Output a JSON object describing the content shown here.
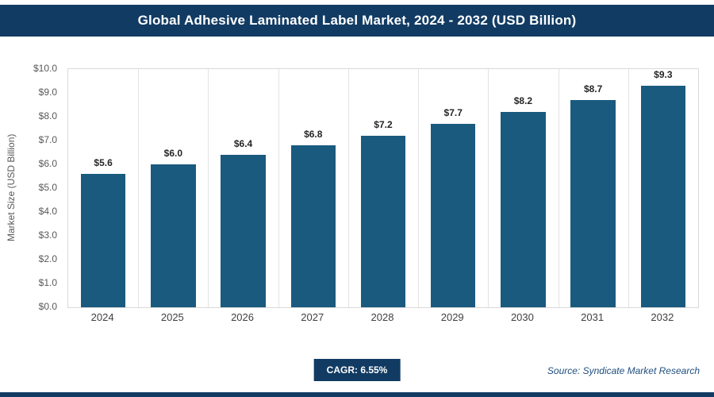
{
  "header": {
    "title": "Global Adhesive Laminated Label Market, 2024 - 2032 (USD Billion)"
  },
  "chart_data": {
    "type": "bar",
    "title": "Global Adhesive Laminated Label Market, 2024 - 2032 (USD Billion)",
    "categories": [
      "2024",
      "2025",
      "2026",
      "2027",
      "2028",
      "2029",
      "2030",
      "2031",
      "2032"
    ],
    "values": [
      5.6,
      6.0,
      6.4,
      6.8,
      7.2,
      7.7,
      8.2,
      8.7,
      9.3
    ],
    "bar_labels": [
      "$5.6",
      "$6.0",
      "$6.4",
      "$6.8",
      "$7.2",
      "$7.7",
      "$8.2",
      "$8.7",
      "$9.3"
    ],
    "xlabel": "",
    "ylabel": "Market Size (USD Billion)",
    "ylim": [
      0,
      10
    ],
    "ytick_step": 1.0,
    "ytick_labels": [
      "$0.0",
      "$1.0",
      "$2.0",
      "$3.0",
      "$4.0",
      "$5.0",
      "$6.0",
      "$7.0",
      "$8.0",
      "$9.0",
      "$10.0"
    ],
    "grid": "vertical-category-boundaries",
    "legend": "none",
    "bar_color": "#1a5a7e"
  },
  "footer": {
    "cagr": "CAGR: 6.55%",
    "source": "Source: Syndicate Market Research"
  },
  "colors": {
    "banner": "#123b63",
    "bar": "#1a5a7e",
    "grid": "#e3e3e3",
    "source_text": "#205081"
  }
}
